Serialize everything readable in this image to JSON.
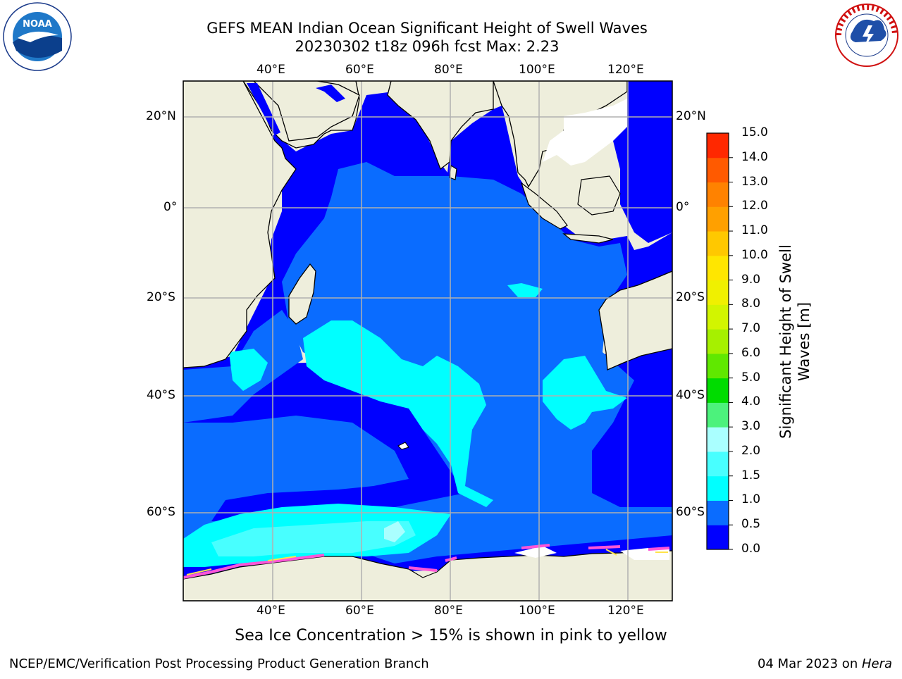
{
  "header": {
    "title_line1": "GEFS MEAN Indian Ocean Significant Height of Swell Waves",
    "title_line2": "20230302 t18z 096h fcst   Max: 2.23"
  },
  "logos": {
    "left": "NOAA",
    "left_ring_text": "NATIONAL OCEANIC AND ATMOSPHERIC ADMINISTRATION · U.S. DEPARTMENT OF COMMERCE",
    "right_ring_text": "NATIONAL WEATHER SERVICE"
  },
  "map": {
    "lon_ticks": [
      "40°E",
      "60°E",
      "80°E",
      "100°E",
      "120°E"
    ],
    "lat_ticks": [
      "20°N",
      "0°",
      "20°S",
      "40°S",
      "60°S"
    ],
    "lon_range": [
      20,
      130
    ],
    "lat_range": [
      -75,
      28
    ],
    "colors": {
      "land": "#eeeedc",
      "grid": "#b0b0b0",
      "sea_ice": "#ff55d8"
    }
  },
  "colorbar": {
    "label": "Significant Height of Swell Waves [m]",
    "levels": [
      "0.0",
      "0.5",
      "1.0",
      "1.5",
      "2.0",
      "3.0",
      "4.0",
      "5.0",
      "6.0",
      "7.0",
      "8.0",
      "9.0",
      "10.0",
      "11.0",
      "12.0",
      "13.0",
      "14.0",
      "15.0"
    ],
    "colors": [
      "#0000ff",
      "#0a6cff",
      "#00ffff",
      "#48ffff",
      "#aaffff",
      "#4cf27c",
      "#00dc00",
      "#60e800",
      "#a6f000",
      "#d2f500",
      "#f0f000",
      "#ffe600",
      "#ffc800",
      "#ffa000",
      "#ff8200",
      "#ff5a00",
      "#ff2800",
      "#ff0000"
    ]
  },
  "note": "Sea Ice Concentration > 15% is shown in pink to yellow",
  "footer": {
    "left": "NCEP/EMC/Verification Post Processing Product Generation Branch",
    "date": "04 Mar 2023 on ",
    "host": "Hera"
  }
}
